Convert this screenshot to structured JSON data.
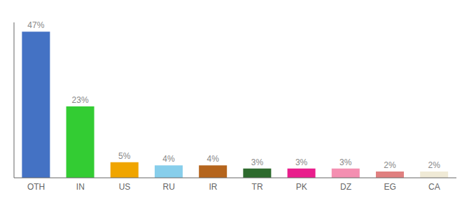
{
  "chart_data": {
    "type": "bar",
    "categories": [
      "OTH",
      "IN",
      "US",
      "RU",
      "IR",
      "TR",
      "PK",
      "DZ",
      "EG",
      "CA"
    ],
    "values": [
      47,
      23,
      5,
      4,
      4,
      3,
      3,
      3,
      2,
      2
    ],
    "value_labels": [
      "47%",
      "23%",
      "5%",
      "4%",
      "4%",
      "3%",
      "3%",
      "3%",
      "2%",
      "2%"
    ],
    "data_labels": true,
    "colors": [
      "#4472c4",
      "#33cc33",
      "#f0a500",
      "#87ceeb",
      "#b5651d",
      "#2d6a2d",
      "#e91e8c",
      "#f48fb1",
      "#e08080",
      "#f0ead6"
    ],
    "ylim": [
      0,
      50
    ],
    "tick_labels": "x"
  }
}
